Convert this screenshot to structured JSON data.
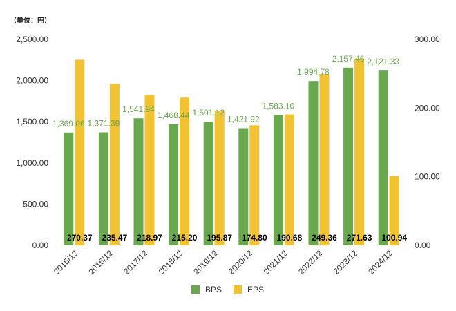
{
  "chart_data": {
    "type": "bar",
    "unit_label": "（単位：円）",
    "categories": [
      "2015/12",
      "2016/12",
      "2017/12",
      "2018/12",
      "2019/12",
      "2020/12",
      "2021/12",
      "2022/12",
      "2023/12",
      "2024/12"
    ],
    "series": [
      {
        "name": "BPS",
        "axis": "left",
        "color": "#6aa84f",
        "values": [
          1369.06,
          1371.39,
          1541.94,
          1468.44,
          1501.12,
          1421.92,
          1583.1,
          1994.78,
          2157.46,
          2121.33
        ],
        "labels": [
          "1,369.06",
          "1,371.39",
          "1,541.94",
          "1,468.44",
          "1,501.12",
          "1,421.92",
          "1,583.10",
          "1,994.78",
          "2,157.46",
          "2,121.33"
        ]
      },
      {
        "name": "EPS",
        "axis": "right",
        "color": "#f1c232",
        "values": [
          270.37,
          235.47,
          218.97,
          215.2,
          195.87,
          174.8,
          190.68,
          249.36,
          271.63,
          100.94
        ],
        "labels": [
          "270.37",
          "235.47",
          "218.97",
          "215.20",
          "195.87",
          "174.80",
          "190.68",
          "249.36",
          "271.63",
          "100.94"
        ]
      }
    ],
    "y_left": {
      "min": 0,
      "max": 2500,
      "ticks": [
        "0.00",
        "500.00",
        "1,000.00",
        "1,500.00",
        "2,000.00",
        "2,500.00"
      ]
    },
    "y_right": {
      "min": 0,
      "max": 300,
      "ticks": [
        "0.00",
        "100.00",
        "200.00",
        "300.00"
      ]
    },
    "legend": {
      "position": "bottom"
    },
    "grid": false
  }
}
